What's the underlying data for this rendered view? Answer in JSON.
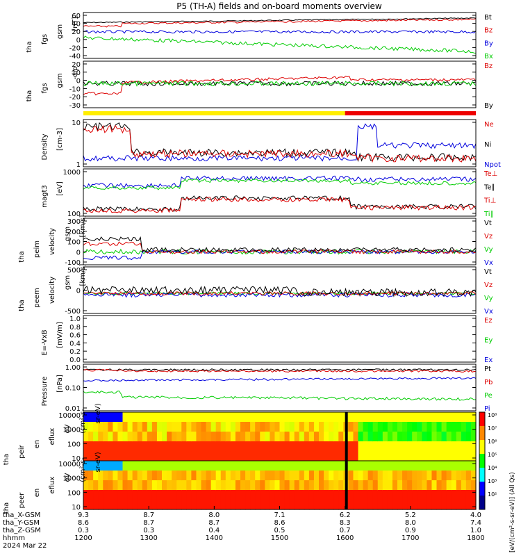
{
  "title": "P5 (TH-A) fields and on-board moments overview",
  "colors": {
    "black": "#000000",
    "red": "#dd0000",
    "green": "#00cc00",
    "blue": "#0000dd",
    "yellow": "#ffee00",
    "bar_red": "#ee0000"
  },
  "chart_data": {
    "type": "line",
    "x_ticks": [
      "1200",
      "1300",
      "1400",
      "1500",
      "1600",
      "1700",
      "1800"
    ],
    "ephemeris": {
      "labels": [
        "tha_X-GSM",
        "tha_Y-GSM",
        "tha_Z-GSM",
        "hhmm",
        "2024 Mar 22"
      ],
      "x": [
        "9.3",
        "8.7",
        "8.0",
        "7.1",
        "6.2",
        "5.2",
        "4.0"
      ],
      "y": [
        "8.6",
        "8.7",
        "8.7",
        "8.6",
        "8.3",
        "8.0",
        "7.4"
      ],
      "z": [
        "0.3",
        "0.3",
        "0.4",
        "0.5",
        "0.7",
        "0.9",
        "1.0"
      ]
    },
    "mode_bar": {
      "yellow_until": "1600",
      "red_after": "1600"
    },
    "panels": [
      {
        "ylabel": [
          "tha",
          "fgs",
          "gsm",
          "[nT]"
        ],
        "yticks": [
          "60",
          "40",
          "20",
          "0",
          "-20",
          "-40"
        ],
        "ylim": [
          -40,
          62
        ],
        "legend": [
          {
            "name": "Bt",
            "color": "black"
          },
          {
            "name": "Bz",
            "color": "red"
          },
          {
            "name": "By",
            "color": "blue"
          },
          {
            "name": "Bx",
            "color": "green"
          }
        ]
      },
      {
        "ylabel": [
          "tha",
          "fgs",
          "gsm",
          "-dip"
        ],
        "yticks": [
          "20",
          "10",
          "0",
          "-10",
          "-20",
          "-30"
        ],
        "ylim": [
          -36,
          24
        ],
        "legend": [
          {
            "name": "Bz",
            "color": "red"
          },
          {
            "name": "By",
            "color": "black"
          }
        ]
      },
      {
        "ylabel": [
          "Density",
          "[cm-3]"
        ],
        "yticks": [
          "10",
          "1"
        ],
        "log": true,
        "ylim": [
          0.4,
          30
        ],
        "legend": [
          {
            "name": "Ne",
            "color": "red"
          },
          {
            "name": "Ni",
            "color": "black"
          },
          {
            "name": "Npot",
            "color": "blue"
          }
        ]
      },
      {
        "ylabel": [
          "magt3",
          "[eV]"
        ],
        "yticks": [
          "1000",
          "100"
        ],
        "log": true,
        "ylim": [
          30,
          3000
        ],
        "legend": [
          {
            "name": "Te⊥",
            "color": "red"
          },
          {
            "name": "Te∥",
            "color": "black"
          },
          {
            "name": "Ti⊥",
            "color": "red"
          },
          {
            "name": "Ti∥",
            "color": "green"
          }
        ]
      },
      {
        "ylabel": [
          "tha",
          "peim",
          "velocity",
          "gsm",
          "[km/s]"
        ],
        "yticks": [
          "300",
          "200",
          "100",
          "0",
          "-100"
        ],
        "ylim": [
          -120,
          300
        ],
        "legend": [
          {
            "name": "Vt",
            "color": "black"
          },
          {
            "name": "Vz",
            "color": "red"
          },
          {
            "name": "Vy",
            "color": "green"
          },
          {
            "name": "Vx",
            "color": "blue"
          }
        ]
      },
      {
        "ylabel": [
          "tha",
          "peem",
          "velocity",
          "gsm",
          "[km/s]"
        ],
        "yticks": [
          "500",
          "0",
          "-500"
        ],
        "ylim": [
          -650,
          750
        ],
        "legend": [
          {
            "name": "Vt",
            "color": "black"
          },
          {
            "name": "Vz",
            "color": "red"
          },
          {
            "name": "Vy",
            "color": "green"
          },
          {
            "name": "Vx",
            "color": "blue"
          }
        ]
      },
      {
        "ylabel": [
          "E=-VxB",
          "[mV/m]"
        ],
        "yticks": [
          "1.0",
          "0.8",
          "0.6",
          "0.4",
          "0.2",
          "0.0"
        ],
        "ylim": [
          0,
          1
        ],
        "legend": [
          {
            "name": "Ez",
            "color": "red"
          },
          {
            "name": "Ey",
            "color": "green"
          },
          {
            "name": "Ex",
            "color": "blue"
          }
        ]
      },
      {
        "ylabel": [
          "Pressure",
          "[nPa]"
        ],
        "yticks": [
          "1.00",
          "0.10",
          "0.01"
        ],
        "log": true,
        "ylim": [
          0.005,
          2
        ],
        "legend": [
          {
            "name": "Pt",
            "color": "black"
          },
          {
            "name": "Pb",
            "color": "red"
          },
          {
            "name": "Pe",
            "color": "green"
          },
          {
            "name": "Pi",
            "color": "blue"
          }
        ]
      },
      {
        "ylabel": [
          "tha",
          "peir",
          "en",
          "eflux",
          "eV",
          "(cm²-s-",
          "sr-eV)"
        ],
        "yticks": [
          "10000",
          "1000",
          "100",
          "10"
        ],
        "log": true,
        "spectrogram": true
      },
      {
        "ylabel": [
          "tha",
          "peer",
          "en",
          "eflux",
          "eV",
          "(cm²-s-",
          "sr-eV)"
        ],
        "yticks": [
          "10000",
          "1000",
          "100",
          "10"
        ],
        "log": true,
        "spectrogram": true
      }
    ],
    "colorbar": {
      "label": "[eV/(cm²-s-sr-eV)] (All Qs)",
      "ticks": [
        "10⁸",
        "10⁷",
        "10⁶",
        "10⁵",
        "10⁴",
        "10³",
        "10²"
      ]
    }
  }
}
